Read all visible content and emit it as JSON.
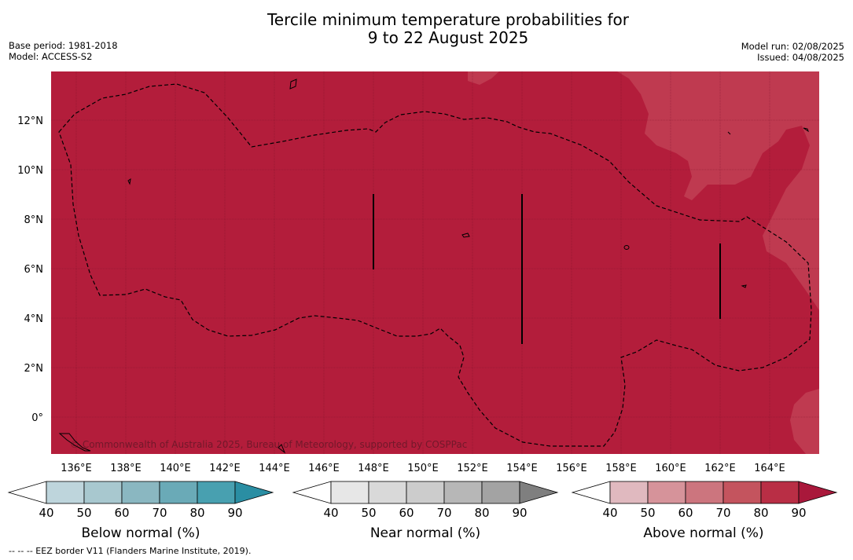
{
  "title_line1": "Tercile minimum temperature probabilities for",
  "title_line2": "9 to 22 August 2025",
  "meta_left": [
    "Base period: 1981-2018",
    "Model: ACCESS-S2"
  ],
  "meta_right": [
    "Model run: 02/08/2025",
    "Issued: 04/08/2025"
  ],
  "copyright": "© Commonwealth of Australia 2025, Bureau of Meteorology, supported by COSPPac",
  "footnote": "-- -- -- EEZ border V11 (Flanders Marine Institute, 2019).",
  "colors": {
    "map_base": "#b31d3b",
    "map_light": "#bf3a50",
    "above": [
      "#ffffff",
      "#e0b9bf",
      "#d6939a",
      "#cc757e",
      "#c4545e",
      "#b92e45",
      "#a9183b"
    ],
    "near": [
      "#ffffff",
      "#e7e7e7",
      "#d9d9d9",
      "#cccccc",
      "#b7b7b7",
      "#a3a3a3",
      "#7f7f7f"
    ],
    "below": [
      "#ffffff",
      "#bed5dc",
      "#a8c8cf",
      "#8ab7c1",
      "#6aaab7",
      "#48a0b0",
      "#2a8ea3"
    ]
  },
  "map": {
    "lon_ticks": [
      "136°E",
      "138°E",
      "140°E",
      "142°E",
      "144°E",
      "146°E",
      "148°E",
      "150°E",
      "152°E",
      "154°E",
      "156°E",
      "158°E",
      "160°E",
      "162°E",
      "164°E"
    ],
    "lat_ticks": [
      "12°N",
      "10°N",
      "8°N",
      "6°N",
      "4°N",
      "2°N",
      "0°"
    ]
  },
  "legends": [
    {
      "label": "Below normal (%)",
      "ticks": [
        "40",
        "50",
        "60",
        "70",
        "80",
        "90"
      ]
    },
    {
      "label": "Near normal (%)",
      "ticks": [
        "40",
        "50",
        "60",
        "70",
        "80",
        "90"
      ]
    },
    {
      "label": "Above normal (%)",
      "ticks": [
        "40",
        "50",
        "60",
        "70",
        "80",
        "90"
      ]
    }
  ]
}
